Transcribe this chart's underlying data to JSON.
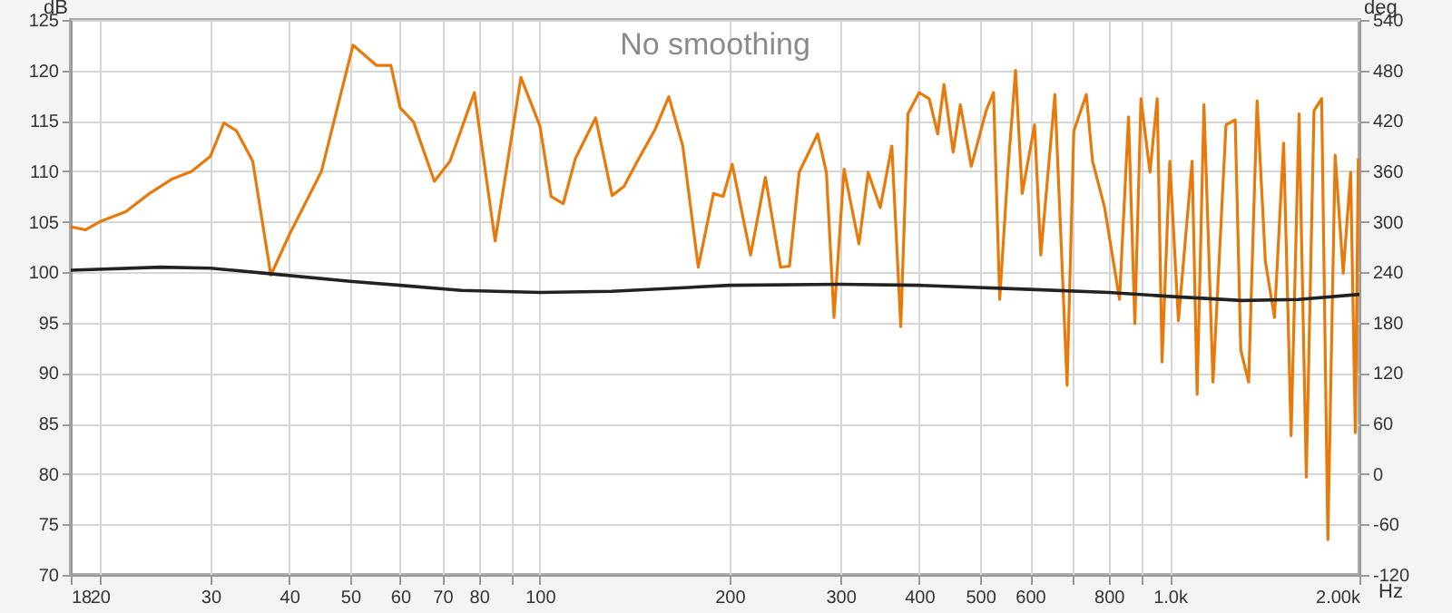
{
  "chart_data": {
    "type": "line",
    "title": "No smoothing",
    "ylabel": "dB",
    "y2label": "deg",
    "log": "x",
    "grid": true,
    "xlim": [
      18,
      2000
    ],
    "xticks": [
      18,
      20,
      30,
      40,
      50,
      60,
      70,
      80,
      {
        "value": 90,
        "label": null
      },
      100,
      200,
      300,
      400,
      500,
      600,
      {
        "value": 700,
        "label": null
      },
      800,
      {
        "value": 900,
        "label": null
      },
      {
        "value": 1000,
        "label": "1.0k"
      },
      {
        "value": 2000,
        "label": "2.00k"
      }
    ],
    "xlabel": "Hz",
    "ylim": [
      70,
      125
    ],
    "yticks": [
      70,
      75,
      80,
      85,
      90,
      95,
      100,
      105,
      110,
      115,
      120,
      125
    ],
    "y2lim": [
      -120,
      540
    ],
    "y2ticks": [
      -120,
      -60,
      0,
      60,
      120,
      180,
      240,
      300,
      360,
      420,
      480,
      540
    ],
    "series": [
      {
        "color": "#e87a0c",
        "x": [
          18,
          19,
          20,
          22,
          24,
          26,
          28,
          30,
          31.5,
          33,
          35,
          37.4,
          40,
          45,
          50.5,
          55,
          58,
          60,
          63,
          68,
          72,
          78.7,
          84.9,
          93.3,
          100,
          104.2,
          108.9,
          113.9,
          122.6,
          130.2,
          136,
          142.8,
          152.5,
          160.2,
          168.6,
          178.4,
          188.6,
          195.4,
          202,
          216,
          228,
          241,
          249,
          258,
          276,
          285,
          293,
          304,
          321,
          332,
          347,
          362,
          374,
          384,
          400,
          415,
          428,
          438,
          453,
          465,
          484,
          511,
          525,
          537,
          553,
          569,
          583,
          610,
          624,
          657,
          687,
          704,
          737,
          754,
          788,
          832,
          860,
          880,
          900,
          930,
          955,
          972,
          1000,
          1032,
          1085,
          1105,
          1133,
          1171,
          1228,
          1270,
          1296,
          1334,
          1376,
          1418,
          1466,
          1516,
          1558,
          1604,
          1647,
          1694,
          1742,
          1782,
          1830,
          1885,
          1937,
          1970,
          1992
        ],
        "values": [
          104.5,
          104.2,
          105,
          106,
          107.8,
          109.2,
          110,
          111.5,
          114.8,
          114,
          111,
          99.7,
          103.7,
          110,
          122.5,
          120.5,
          120.5,
          116.3,
          114.9,
          109,
          111,
          117.8,
          103.1,
          119.3,
          114.5,
          107.5,
          106.8,
          111.3,
          115.3,
          107.6,
          108.5,
          111,
          114.2,
          117.4,
          112.5,
          100.5,
          107.8,
          107.5,
          110.7,
          101.7,
          109.4,
          100.5,
          100.6,
          109.9,
          113.7,
          109.9,
          95.5,
          110.2,
          102.8,
          109.9,
          106.4,
          112.5,
          94.6,
          115.7,
          117.8,
          117.2,
          113.7,
          118.6,
          111.9,
          116.6,
          110.5,
          116,
          117.8,
          97.3,
          109.9,
          120,
          107.8,
          114.6,
          101.7,
          117.6,
          88.8,
          114,
          117.6,
          111,
          106.4,
          97.3,
          115.4,
          94.9,
          117.2,
          109.9,
          117.2,
          91.1,
          111,
          95.2,
          111,
          87.9,
          116.6,
          89.1,
          114.6,
          115.1,
          92.3,
          89.1,
          117,
          101.1,
          95.5,
          112.8,
          83.8,
          115.7,
          79.7,
          116,
          117.2,
          73.5,
          111.6,
          99.9,
          109.9,
          84.1,
          111.3
        ]
      },
      {
        "color": "#222222",
        "x": [
          18,
          25,
          30,
          38,
          50,
          60,
          75,
          100,
          130,
          200,
          300,
          400,
          600,
          800,
          1000,
          1300,
          1600,
          2000
        ],
        "values": [
          100.2,
          100.5,
          100.4,
          99.8,
          99.1,
          98.7,
          98.2,
          98,
          98.1,
          98.7,
          98.8,
          98.7,
          98.3,
          98,
          97.6,
          97.2,
          97.3,
          97.8
        ]
      }
    ]
  }
}
